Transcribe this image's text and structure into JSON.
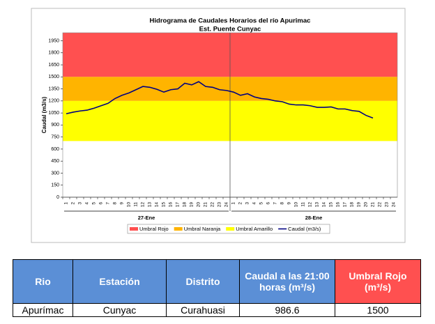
{
  "chart_data": {
    "type": "line",
    "title": "Hidrograma de Caudales Horarios del río Apurimac",
    "subtitle": "Est. Puente Cunyac",
    "y_label": "Caudal (m3/s)",
    "days": [
      "27-Ene",
      "28-Ene"
    ],
    "categories": [
      1,
      2,
      3,
      4,
      5,
      6,
      7,
      8,
      9,
      10,
      11,
      12,
      13,
      14,
      15,
      16,
      17,
      18,
      19,
      20,
      21,
      22,
      23,
      24,
      1,
      2,
      3,
      4,
      5,
      6,
      7,
      8,
      9,
      10,
      11,
      12,
      13,
      14,
      15,
      16,
      17,
      18,
      19,
      20,
      21,
      22,
      23,
      24
    ],
    "ylim": [
      0,
      2050
    ],
    "yticks": [
      0,
      150,
      300,
      450,
      600,
      750,
      900,
      1050,
      1200,
      1350,
      1500,
      1650,
      1800,
      1950
    ],
    "bands": [
      {
        "name": "Umbral Rojo",
        "color": "#ff5050",
        "from": 1500
      },
      {
        "name": "Umbral Naranja",
        "color": "#ffb400",
        "from": 1200,
        "to": 1500
      },
      {
        "name": "Umbral Amarillo",
        "color": "#ffff00",
        "from": 700,
        "to": 1200
      }
    ],
    "series": [
      {
        "name": "Caudal (m3/s)",
        "color": "#000080",
        "values": [
          1040,
          1060,
          1075,
          1085,
          1110,
          1140,
          1170,
          1230,
          1270,
          1300,
          1340,
          1380,
          1370,
          1345,
          1310,
          1340,
          1350,
          1420,
          1400,
          1440,
          1380,
          1370,
          1340,
          1330,
          1310,
          1270,
          1290,
          1250,
          1230,
          1220,
          1200,
          1190,
          1160,
          1150,
          1150,
          1140,
          1120,
          1120,
          1125,
          1100,
          1100,
          1080,
          1070,
          1020,
          986.6,
          null,
          null,
          null
        ]
      }
    ]
  },
  "table": {
    "headers": [
      "Rio",
      "Estación",
      "Distrito",
      "Caudal a las 21:00 horas (m³/s)",
      "Umbral Rojo (m³/s)"
    ],
    "rows": [
      [
        "Apurímac",
        "Cunyac",
        "Curahuasi",
        986.6,
        1500
      ]
    ]
  }
}
